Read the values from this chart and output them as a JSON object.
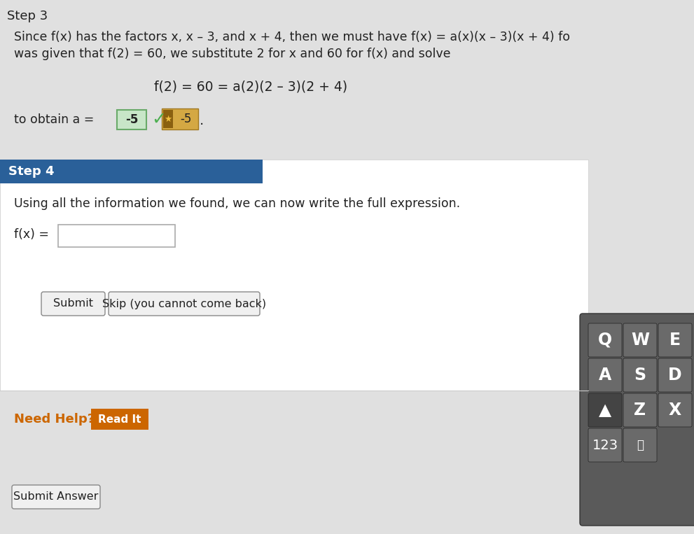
{
  "bg_color": "#e0e0e0",
  "step3_header": "Step 3",
  "step3_text1": "Since f(x) has the factors x, x – 3, and x + 4, then we must have f(x) = a(x)(x – 3)(x + 4) fo",
  "step3_text2": "was given that f(2) = 60, we substitute 2 for x and 60 for f(x) and solve",
  "step3_formula": "f(2) = 60 = a(2)(2 – 3)(2 + 4)",
  "step3_obtain": "to obtain a = ",
  "step3_answer_box": "-5",
  "step3_coin_value": "-5",
  "step4_header": "Step 4",
  "step4_header_bg": "#2a6099",
  "step4_text": "Using all the information we found, we can now write the full expression.",
  "step4_fx": "f(x) =",
  "submit_btn": "Submit",
  "skip_btn": "Skip (you cannot come back)",
  "need_help": "Need Help?",
  "read_it_btn": "Read It",
  "submit_answer_btn": "Submit Answer",
  "keyboard_bg": "#5a5a5a",
  "check_color": "#4caf50",
  "answer_box_color": "#c8e6c8",
  "answer_box_border": "#6aaa6a",
  "coin_bg": "#d4a843",
  "need_help_color": "#cc6600",
  "read_it_bg": "#cc6600",
  "input_box_border": "#aaaaaa",
  "key_color": "#6a6a6a",
  "key_dark": "#444444"
}
